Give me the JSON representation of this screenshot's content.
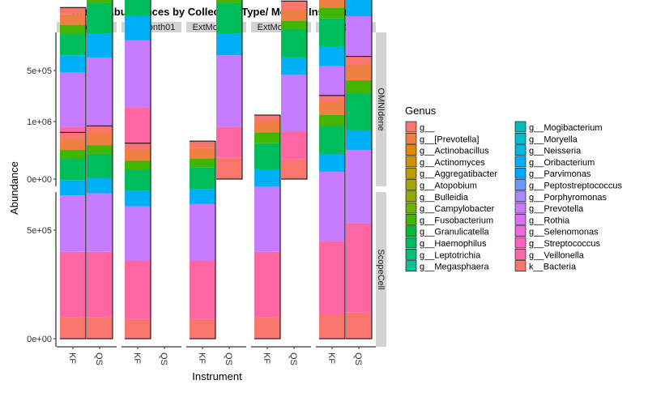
{
  "chart_data": {
    "type": "bar",
    "title": "Genus Abundances by Collection Type/ Month/ Instrument",
    "xlabel": "Instrument",
    "ylabel": "Abundance",
    "x_ticks": [
      "KF",
      "QS"
    ],
    "y_ticks": [
      "0e+00",
      "5e+05",
      "1e+06"
    ],
    "y_tick_values": [
      0,
      500000,
      1000000
    ],
    "ylim": [
      0,
      1350000
    ],
    "columns": [
      "ExtMonth0",
      "ExtMonth01",
      "ExtMonth03",
      "ExtMonth06",
      "ExtMonth12"
    ],
    "rows": [
      "OMNIdene",
      "ScopeCell"
    ],
    "legend_title": "Genus",
    "legend_placement": "right",
    "genera": [
      {
        "name": "g__",
        "color": "#F8766D"
      },
      {
        "name": "g__[Prevotella]",
        "color": "#EE8043"
      },
      {
        "name": "g__Actinobacillus",
        "color": "#E18A00"
      },
      {
        "name": "g__Actinomyces",
        "color": "#D09300"
      },
      {
        "name": "g__Aggregatibacter",
        "color": "#BD9C00"
      },
      {
        "name": "g__Atopobium",
        "color": "#A7A400"
      },
      {
        "name": "g__Bulleidia",
        "color": "#8EAB00"
      },
      {
        "name": "g__Campylobacter",
        "color": "#6FB100"
      },
      {
        "name": "g__Fusobacterium",
        "color": "#40B600"
      },
      {
        "name": "g__Granulicatella",
        "color": "#00BA38"
      },
      {
        "name": "g__Haemophilus",
        "color": "#00BD5C"
      },
      {
        "name": "g__Leptotrichia",
        "color": "#00C07B"
      },
      {
        "name": "g__Megasphaera",
        "color": "#00C19A"
      },
      {
        "name": "g__Mogibacterium",
        "color": "#00C0B5"
      },
      {
        "name": "g__Moryella",
        "color": "#00BDCC"
      },
      {
        "name": "g__Neisseria",
        "color": "#00B8E3"
      },
      {
        "name": "g__Oribacterium",
        "color": "#00B0F6"
      },
      {
        "name": "g__Parvimonas",
        "color": "#00A5FF"
      },
      {
        "name": "g__Peptostreptococcus",
        "color": "#6D97FF"
      },
      {
        "name": "g__Porphyromonas",
        "color": "#A58AFF"
      },
      {
        "name": "g__Prevotella",
        "color": "#C77CFF"
      },
      {
        "name": "g__Rothia",
        "color": "#E06FF5"
      },
      {
        "name": "g__Selenomonas",
        "color": "#F366E3"
      },
      {
        "name": "g__Streptococcus",
        "color": "#FF61C3"
      },
      {
        "name": "g__Veillonella",
        "color": "#FF67A4"
      },
      {
        "name": "k__Bacteria",
        "color": "#F8766D"
      }
    ],
    "bars": [
      {
        "row": "OMNIdene",
        "column": "ExtMonth0",
        "instrument": "KF",
        "total": 790000,
        "segments": [
          [
            "k__Bacteria",
            100000
          ],
          [
            "g__Veillonella",
            140000
          ],
          [
            "g__Prevotella",
            250000
          ],
          [
            "g__Oribacterium",
            80000
          ],
          [
            "g__Haemophilus",
            100000
          ],
          [
            "g__Fusobacterium",
            40000
          ],
          [
            "g__[Prevotella]",
            50000
          ],
          [
            "g__",
            30000
          ]
        ]
      },
      {
        "row": "OMNIdene",
        "column": "ExtMonth0",
        "instrument": "QS",
        "total": 970000,
        "segments": [
          [
            "k__Bacteria",
            100000
          ],
          [
            "g__Veillonella",
            130000
          ],
          [
            "g__Prevotella",
            330000
          ],
          [
            "g__Oribacterium",
            110000
          ],
          [
            "g__Haemophilus",
            140000
          ],
          [
            "g__Fusobacterium",
            50000
          ],
          [
            "g__[Prevotella]",
            70000
          ],
          [
            "g__",
            40000
          ]
        ]
      },
      {
        "row": "OMNIdene",
        "column": "ExtMonth01",
        "instrument": "KF",
        "total": 1050000,
        "segments": [
          [
            "k__Bacteria",
            100000
          ],
          [
            "g__Veillonella",
            230000
          ],
          [
            "g__Prevotella",
            310000
          ],
          [
            "g__Oribacterium",
            110000
          ],
          [
            "g__Haemophilus",
            140000
          ],
          [
            "g__Fusobacterium",
            50000
          ],
          [
            "g__[Prevotella]",
            70000
          ],
          [
            "g__",
            40000
          ]
        ]
      },
      {
        "row": "OMNIdene",
        "column": "ExtMonth03",
        "instrument": "QS",
        "total": 970000,
        "segments": [
          [
            "k__Bacteria",
            100000
          ],
          [
            "g__Veillonella",
            140000
          ],
          [
            "g__Prevotella",
            330000
          ],
          [
            "g__Oribacterium",
            100000
          ],
          [
            "g__Haemophilus",
            140000
          ],
          [
            "g__Fusobacterium",
            50000
          ],
          [
            "g__[Prevotella]",
            70000
          ],
          [
            "g__",
            40000
          ]
        ]
      },
      {
        "row": "OMNIdene",
        "column": "ExtMonth06",
        "instrument": "QS",
        "total": 820000,
        "segments": [
          [
            "k__Bacteria",
            90000
          ],
          [
            "g__Veillonella",
            130000
          ],
          [
            "g__Prevotella",
            260000
          ],
          [
            "g__Oribacterium",
            80000
          ],
          [
            "g__Haemophilus",
            130000
          ],
          [
            "g__Fusobacterium",
            40000
          ],
          [
            "g__[Prevotella]",
            50000
          ],
          [
            "g__",
            40000
          ]
        ]
      },
      {
        "row": "OMNIdene",
        "column": "ExtMonth12",
        "instrument": "KF",
        "total": 880000,
        "segments": [
          [
            "k__Bacteria",
            90000
          ],
          [
            "g__Veillonella",
            140000
          ],
          [
            "g__Prevotella",
            290000
          ],
          [
            "g__Oribacterium",
            90000
          ],
          [
            "g__Haemophilus",
            130000
          ],
          [
            "g__Fusobacterium",
            50000
          ],
          [
            "g__[Prevotella]",
            60000
          ],
          [
            "g__",
            30000
          ]
        ]
      },
      {
        "row": "OMNIdene",
        "column": "ExtMonth12",
        "instrument": "QS",
        "total": 1280000,
        "segments": [
          [
            "k__Bacteria",
            110000
          ],
          [
            "g__Veillonella",
            200000
          ],
          [
            "g__Prevotella",
            440000
          ],
          [
            "g__Oribacterium",
            140000
          ],
          [
            "g__Haemophilus",
            170000
          ],
          [
            "g__Fusobacterium",
            80000
          ],
          [
            "g__[Prevotella]",
            90000
          ],
          [
            "g__",
            50000
          ]
        ]
      },
      {
        "row": "ScopeCell",
        "column": "ExtMonth0",
        "instrument": "KF",
        "total": 950000,
        "segments": [
          [
            "k__Bacteria",
            100000
          ],
          [
            "g__Veillonella",
            300000
          ],
          [
            "g__Prevotella",
            260000
          ],
          [
            "g__Oribacterium",
            70000
          ],
          [
            "g__Haemophilus",
            100000
          ],
          [
            "g__Fusobacterium",
            40000
          ],
          [
            "g__[Prevotella]",
            50000
          ],
          [
            "g__",
            30000
          ]
        ]
      },
      {
        "row": "ScopeCell",
        "column": "ExtMonth0",
        "instrument": "QS",
        "total": 980000,
        "segments": [
          [
            "k__Bacteria",
            100000
          ],
          [
            "g__Veillonella",
            300000
          ],
          [
            "g__Prevotella",
            270000
          ],
          [
            "g__Oribacterium",
            70000
          ],
          [
            "g__Haemophilus",
            110000
          ],
          [
            "g__Fusobacterium",
            40000
          ],
          [
            "g__[Prevotella]",
            60000
          ],
          [
            "g__",
            30000
          ]
        ]
      },
      {
        "row": "ScopeCell",
        "column": "ExtMonth01",
        "instrument": "KF",
        "total": 900000,
        "segments": [
          [
            "k__Bacteria",
            90000
          ],
          [
            "g__Veillonella",
            270000
          ],
          [
            "g__Prevotella",
            250000
          ],
          [
            "g__Oribacterium",
            70000
          ],
          [
            "g__Haemophilus",
            100000
          ],
          [
            "g__Fusobacterium",
            40000
          ],
          [
            "g__[Prevotella]",
            50000
          ],
          [
            "g__",
            30000
          ]
        ]
      },
      {
        "row": "ScopeCell",
        "column": "ExtMonth03",
        "instrument": "KF",
        "total": 910000,
        "segments": [
          [
            "k__Bacteria",
            90000
          ],
          [
            "g__Veillonella",
            270000
          ],
          [
            "g__Prevotella",
            260000
          ],
          [
            "g__Oribacterium",
            70000
          ],
          [
            "g__Haemophilus",
            100000
          ],
          [
            "g__Fusobacterium",
            40000
          ],
          [
            "g__[Prevotella]",
            50000
          ],
          [
            "g__",
            30000
          ]
        ]
      },
      {
        "row": "ScopeCell",
        "column": "ExtMonth06",
        "instrument": "KF",
        "total": 1030000,
        "segments": [
          [
            "k__Bacteria",
            100000
          ],
          [
            "g__Veillonella",
            300000
          ],
          [
            "g__Prevotella",
            300000
          ],
          [
            "g__Oribacterium",
            80000
          ],
          [
            "g__Haemophilus",
            120000
          ],
          [
            "g__Fusobacterium",
            50000
          ],
          [
            "g__[Prevotella]",
            50000
          ],
          [
            "g__",
            30000
          ]
        ]
      },
      {
        "row": "ScopeCell",
        "column": "ExtMonth12",
        "instrument": "KF",
        "total": 1120000,
        "segments": [
          [
            "k__Bacteria",
            110000
          ],
          [
            "g__Veillonella",
            340000
          ],
          [
            "g__Prevotella",
            320000
          ],
          [
            "g__Oribacterium",
            80000
          ],
          [
            "g__Haemophilus",
            130000
          ],
          [
            "g__Fusobacterium",
            50000
          ],
          [
            "g__[Prevotella]",
            60000
          ],
          [
            "g__",
            30000
          ]
        ]
      },
      {
        "row": "ScopeCell",
        "column": "ExtMonth12",
        "instrument": "QS",
        "total": 1300000,
        "segments": [
          [
            "k__Bacteria",
            120000
          ],
          [
            "g__Veillonella",
            410000
          ],
          [
            "g__Prevotella",
            340000
          ],
          [
            "g__Oribacterium",
            90000
          ],
          [
            "g__Haemophilus",
            170000
          ],
          [
            "g__Fusobacterium",
            60000
          ],
          [
            "g__[Prevotella]",
            70000
          ],
          [
            "g__",
            40000
          ]
        ]
      }
    ]
  }
}
